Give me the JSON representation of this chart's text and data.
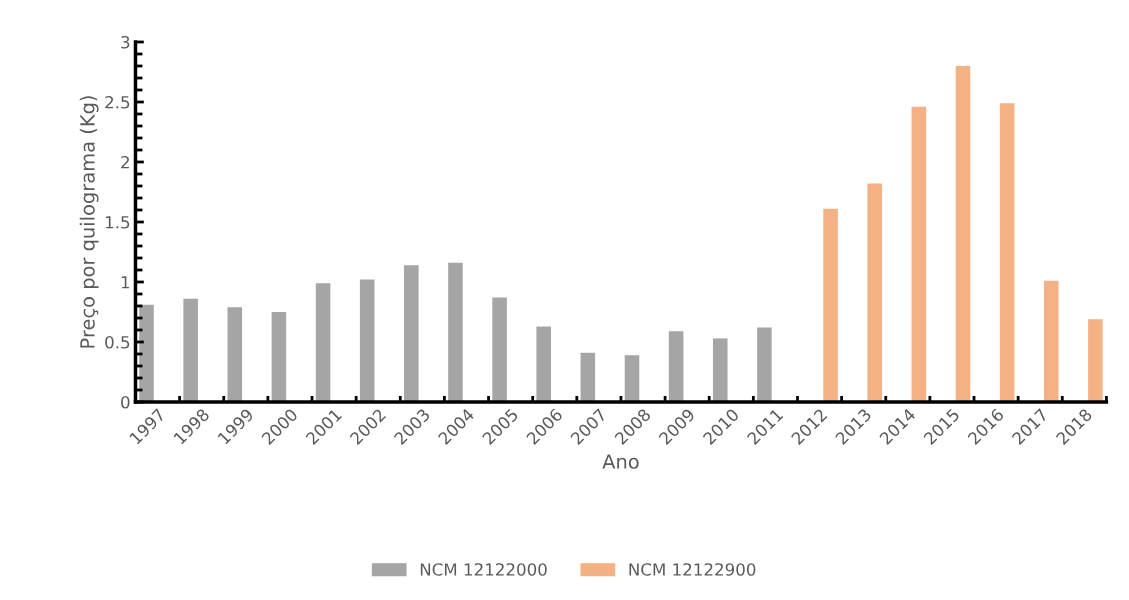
{
  "chart_data": {
    "type": "bar",
    "xlabel": "Ano",
    "ylabel": "Preço por quilograma (Kg)",
    "categories": [
      "1997",
      "1998",
      "1999",
      "2000",
      "2001",
      "2002",
      "2003",
      "2004",
      "2005",
      "2006",
      "2007",
      "2008",
      "2009",
      "2010",
      "2011",
      "2012",
      "2013",
      "2014",
      "2015",
      "2016",
      "2017",
      "2018"
    ],
    "series": [
      {
        "name": "NCM 12122000",
        "color": "#a5a5a5",
        "values": [
          0.81,
          0.86,
          0.79,
          0.75,
          0.99,
          1.02,
          1.14,
          1.16,
          0.87,
          0.63,
          0.41,
          0.39,
          0.59,
          0.53,
          0.62,
          null,
          null,
          null,
          null,
          null,
          null,
          null
        ]
      },
      {
        "name": "NCM 12122900",
        "color": "#f4b183",
        "values": [
          null,
          null,
          null,
          null,
          null,
          null,
          null,
          null,
          null,
          null,
          null,
          null,
          null,
          null,
          null,
          1.61,
          1.82,
          2.46,
          2.8,
          2.49,
          1.01,
          0.69
        ]
      }
    ],
    "ylim": [
      0,
      3
    ],
    "yticks": [
      0,
      0.5,
      1,
      1.5,
      2,
      2.5,
      3
    ],
    "grid": false,
    "legend": "bottom"
  }
}
